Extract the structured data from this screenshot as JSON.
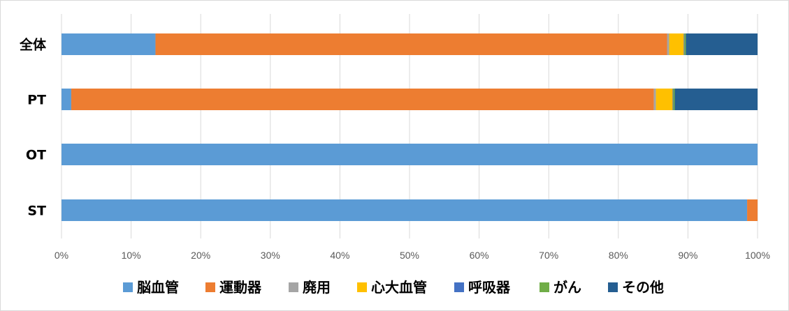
{
  "chart_data": {
    "type": "bar",
    "orientation": "horizontal",
    "stacked": "percent",
    "categories": [
      "全体",
      "PT",
      "OT",
      "ST"
    ],
    "series": [
      {
        "name": "脳血管",
        "color": "#5b9bd5",
        "values": [
          13.5,
          1.4,
          100,
          98.5
        ]
      },
      {
        "name": "運動器",
        "color": "#ed7d31",
        "values": [
          73.5,
          83.7,
          0,
          1.5
        ]
      },
      {
        "name": "廃用",
        "color": "#a5a5a5",
        "values": [
          0.3,
          0.3,
          0,
          0
        ]
      },
      {
        "name": "心大血管",
        "color": "#ffc000",
        "values": [
          2.1,
          2.4,
          0,
          0
        ]
      },
      {
        "name": "呼吸器",
        "color": "#4472c4",
        "values": [
          0.1,
          0.1,
          0,
          0
        ]
      },
      {
        "name": "がん",
        "color": "#70ad47",
        "values": [
          0.2,
          0.2,
          0,
          0
        ]
      },
      {
        "name": "その他",
        "color": "#255e91",
        "values": [
          10.3,
          11.9,
          0,
          0
        ]
      }
    ],
    "xlim": [
      0,
      100
    ],
    "xticks": [
      "0%",
      "10%",
      "20%",
      "30%",
      "40%",
      "50%",
      "60%",
      "70%",
      "80%",
      "90%",
      "100%"
    ],
    "grid": true,
    "legend": "bottom"
  }
}
